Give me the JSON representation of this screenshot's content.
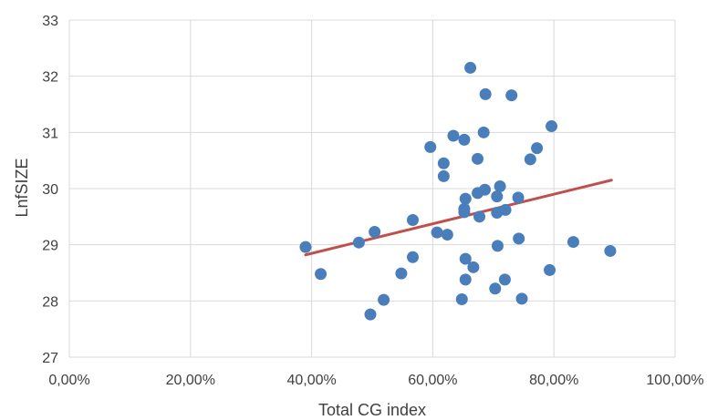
{
  "chart_data": {
    "type": "scatter",
    "title": "",
    "xlabel": "Total CG index",
    "ylabel": "LnfSIZE",
    "xlim": [
      0,
      1
    ],
    "ylim": [
      27,
      33
    ],
    "x_ticks": [
      0,
      0.2,
      0.4,
      0.6,
      0.8,
      1.0
    ],
    "x_tick_labels": [
      "0,00%",
      "20,00%",
      "40,00%",
      "60,00%",
      "80,00%",
      "100,00%"
    ],
    "y_ticks": [
      27,
      28,
      29,
      30,
      31,
      32,
      33
    ],
    "y_tick_labels": [
      "27",
      "28",
      "29",
      "30",
      "31",
      "32",
      "33"
    ],
    "grid": true,
    "legend": "none",
    "marker_color": "#4a7ebb",
    "trendline_color": "#c0504d",
    "trendline": {
      "x": [
        0.39,
        0.895
      ],
      "y": [
        28.82,
        30.15
      ]
    },
    "points": [
      {
        "x": 0.39,
        "y": 28.96
      },
      {
        "x": 0.415,
        "y": 28.48
      },
      {
        "x": 0.478,
        "y": 29.04
      },
      {
        "x": 0.497,
        "y": 27.76
      },
      {
        "x": 0.504,
        "y": 29.23
      },
      {
        "x": 0.519,
        "y": 28.02
      },
      {
        "x": 0.548,
        "y": 28.49
      },
      {
        "x": 0.567,
        "y": 28.78
      },
      {
        "x": 0.567,
        "y": 29.44
      },
      {
        "x": 0.596,
        "y": 30.74
      },
      {
        "x": 0.607,
        "y": 29.22
      },
      {
        "x": 0.618,
        "y": 30.45
      },
      {
        "x": 0.618,
        "y": 30.22
      },
      {
        "x": 0.624,
        "y": 29.18
      },
      {
        "x": 0.634,
        "y": 30.94
      },
      {
        "x": 0.648,
        "y": 28.03
      },
      {
        "x": 0.652,
        "y": 30.87
      },
      {
        "x": 0.652,
        "y": 29.58
      },
      {
        "x": 0.652,
        "y": 29.64
      },
      {
        "x": 0.654,
        "y": 29.82
      },
      {
        "x": 0.654,
        "y": 28.75
      },
      {
        "x": 0.654,
        "y": 28.38
      },
      {
        "x": 0.662,
        "y": 32.15
      },
      {
        "x": 0.667,
        "y": 28.6
      },
      {
        "x": 0.674,
        "y": 30.53
      },
      {
        "x": 0.674,
        "y": 29.92
      },
      {
        "x": 0.677,
        "y": 29.5
      },
      {
        "x": 0.684,
        "y": 31.0
      },
      {
        "x": 0.686,
        "y": 29.98
      },
      {
        "x": 0.687,
        "y": 31.68
      },
      {
        "x": 0.703,
        "y": 28.22
      },
      {
        "x": 0.706,
        "y": 29.86
      },
      {
        "x": 0.706,
        "y": 29.57
      },
      {
        "x": 0.707,
        "y": 28.98
      },
      {
        "x": 0.711,
        "y": 30.04
      },
      {
        "x": 0.719,
        "y": 28.38
      },
      {
        "x": 0.72,
        "y": 29.62
      },
      {
        "x": 0.73,
        "y": 31.66
      },
      {
        "x": 0.741,
        "y": 29.84
      },
      {
        "x": 0.742,
        "y": 29.11
      },
      {
        "x": 0.747,
        "y": 28.04
      },
      {
        "x": 0.761,
        "y": 30.52
      },
      {
        "x": 0.772,
        "y": 30.72
      },
      {
        "x": 0.793,
        "y": 28.55
      },
      {
        "x": 0.796,
        "y": 31.11
      },
      {
        "x": 0.832,
        "y": 29.05
      },
      {
        "x": 0.893,
        "y": 28.89
      }
    ]
  }
}
